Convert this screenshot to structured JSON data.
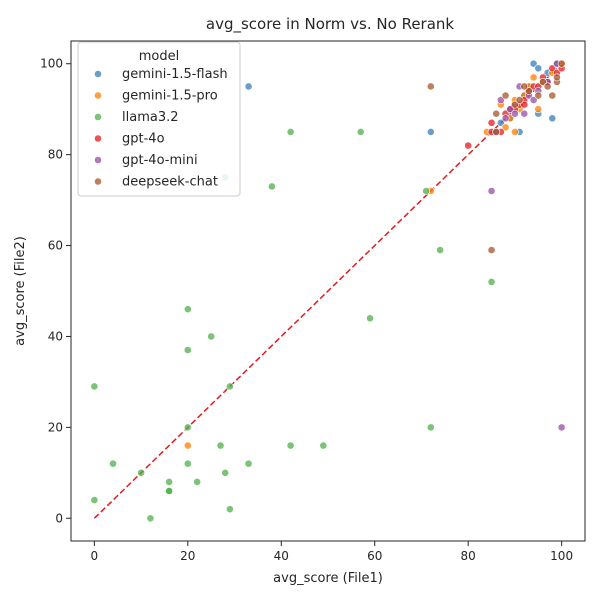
{
  "chart_data": {
    "type": "scatter",
    "title": "avg_score in Norm vs. No Rerank",
    "xlabel": "avg_score (File1)",
    "ylabel": "avg_score (File2)",
    "xlim": [
      -5,
      105
    ],
    "ylim": [
      -5,
      105
    ],
    "xticks": [
      0,
      20,
      40,
      60,
      80,
      100
    ],
    "yticks": [
      0,
      20,
      40,
      60,
      80,
      100
    ],
    "grid": false,
    "legend": {
      "title": "model",
      "placement": "top-left"
    },
    "reference_line": {
      "style": "dashed",
      "color": "#e41a1c",
      "from": [
        0,
        0
      ],
      "to": [
        100,
        100
      ]
    },
    "series": [
      {
        "name": "gemini-1.5-flash",
        "color": "#377eb8",
        "points": [
          [
            33,
            95
          ],
          [
            72,
            85
          ],
          [
            94,
            100
          ],
          [
            95,
            99
          ],
          [
            97,
            98
          ],
          [
            98,
            88
          ],
          [
            91,
            85
          ],
          [
            95,
            89
          ],
          [
            93,
            95
          ],
          [
            99,
            100
          ],
          [
            89,
            88
          ],
          [
            87,
            87
          ],
          [
            90,
            91
          ],
          [
            96,
            96
          ],
          [
            92,
            93
          ]
        ]
      },
      {
        "name": "gemini-1.5-pro",
        "color": "#ff7f00",
        "points": [
          [
            20,
            16
          ],
          [
            72,
            72
          ],
          [
            84,
            85
          ],
          [
            88,
            86
          ],
          [
            90,
            85
          ],
          [
            95,
            90
          ],
          [
            94,
            97
          ],
          [
            92,
            93
          ],
          [
            96,
            96
          ],
          [
            98,
            98
          ],
          [
            87,
            91
          ],
          [
            89,
            88
          ],
          [
            91,
            90
          ],
          [
            93,
            95
          ],
          [
            100,
            100
          ],
          [
            86,
            85
          ],
          [
            90,
            92
          ]
        ]
      },
      {
        "name": "llama3.2",
        "color": "#4daf4a",
        "points": [
          [
            0,
            29
          ],
          [
            0,
            4
          ],
          [
            4,
            12
          ],
          [
            10,
            10
          ],
          [
            12,
            0
          ],
          [
            16,
            8
          ],
          [
            16,
            6
          ],
          [
            16,
            6
          ],
          [
            20,
            46
          ],
          [
            20,
            37
          ],
          [
            20,
            20
          ],
          [
            20,
            12
          ],
          [
            22,
            8
          ],
          [
            25,
            40
          ],
          [
            27,
            16
          ],
          [
            28,
            10
          ],
          [
            28,
            75
          ],
          [
            29,
            29
          ],
          [
            29,
            2
          ],
          [
            33,
            12
          ],
          [
            38,
            73
          ],
          [
            42,
            85
          ],
          [
            42,
            16
          ],
          [
            49,
            16
          ],
          [
            57,
            85
          ],
          [
            59,
            44
          ],
          [
            71,
            72
          ],
          [
            72,
            20
          ],
          [
            74,
            59
          ],
          [
            85,
            52
          ]
        ]
      },
      {
        "name": "gpt-4o",
        "color": "#e41a1c",
        "points": [
          [
            80,
            82
          ],
          [
            85,
            87
          ],
          [
            85,
            85
          ],
          [
            87,
            85
          ],
          [
            88,
            89
          ],
          [
            90,
            90
          ],
          [
            91,
            91
          ],
          [
            92,
            92
          ],
          [
            93,
            94
          ],
          [
            94,
            95
          ],
          [
            95,
            95
          ],
          [
            96,
            97
          ],
          [
            97,
            96
          ],
          [
            98,
            99
          ],
          [
            99,
            98
          ],
          [
            100,
            99
          ],
          [
            89,
            90
          ],
          [
            92,
            91
          ]
        ]
      },
      {
        "name": "gpt-4o-mini",
        "color": "#984ea3",
        "points": [
          [
            85,
            72
          ],
          [
            100,
            20
          ],
          [
            86,
            85
          ],
          [
            87,
            92
          ],
          [
            89,
            90
          ],
          [
            90,
            89
          ],
          [
            91,
            95
          ],
          [
            92,
            89
          ],
          [
            93,
            93
          ],
          [
            95,
            94
          ],
          [
            97,
            96
          ],
          [
            99,
            100
          ],
          [
            88,
            88
          ],
          [
            94,
            92
          ]
        ]
      },
      {
        "name": "deepseek-chat",
        "color": "#a65628",
        "points": [
          [
            72,
            95
          ],
          [
            85,
            59
          ],
          [
            86,
            89
          ],
          [
            88,
            93
          ],
          [
            90,
            91
          ],
          [
            91,
            92
          ],
          [
            93,
            94
          ],
          [
            95,
            93
          ],
          [
            96,
            96
          ],
          [
            97,
            95
          ],
          [
            98,
            93
          ],
          [
            99,
            96
          ],
          [
            100,
            100
          ],
          [
            99,
            97
          ],
          [
            86,
            85
          ],
          [
            92,
            95
          ]
        ]
      }
    ]
  }
}
